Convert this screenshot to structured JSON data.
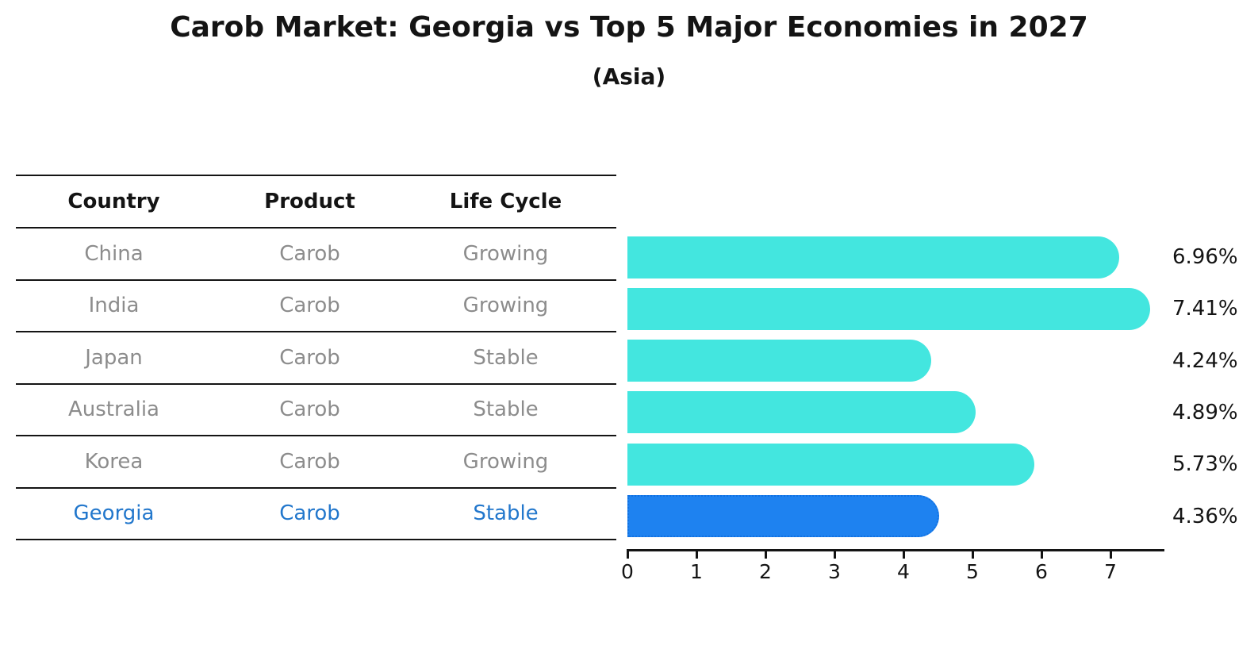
{
  "title": "Carob Market: Georgia vs Top 5 Major Economies in 2027",
  "subtitle": "(Asia)",
  "table": {
    "headers": [
      "Country",
      "Product",
      "Life Cycle"
    ],
    "rows": [
      {
        "country": "China",
        "product": "Carob",
        "life_cycle": "Growing",
        "highlight": false
      },
      {
        "country": "India",
        "product": "Carob",
        "life_cycle": "Growing",
        "highlight": false
      },
      {
        "country": "Japan",
        "product": "Carob",
        "life_cycle": "Stable",
        "highlight": false
      },
      {
        "country": "Australia",
        "product": "Carob",
        "life_cycle": "Stable",
        "highlight": false
      },
      {
        "country": "Korea",
        "product": "Carob",
        "life_cycle": "Growing",
        "highlight": false
      },
      {
        "country": "Georgia",
        "product": "Carob",
        "life_cycle": "Stable",
        "highlight": true
      }
    ]
  },
  "chart_data": {
    "type": "bar",
    "orientation": "horizontal",
    "title": "Carob Market: Georgia vs Top 5 Major Economies in 2027",
    "subtitle": "(Asia)",
    "categories": [
      "China",
      "India",
      "Japan",
      "Australia",
      "Korea",
      "Georgia"
    ],
    "values": [
      6.96,
      7.41,
      4.24,
      4.89,
      5.73,
      4.36
    ],
    "labels": [
      "6.96%",
      "7.41%",
      "4.24%",
      "4.89%",
      "5.73%",
      "4.36%"
    ],
    "highlight_index": 5,
    "xlim": [
      0,
      7.78
    ],
    "xticks": [
      0,
      1,
      2,
      3,
      4,
      5,
      6,
      7
    ],
    "grid": false,
    "legend": null,
    "value_label_suffix": "%"
  },
  "colors": {
    "bar": "#43E6DF",
    "highlight_bar": "#1E82F0",
    "highlight_border": "#1272E2",
    "row_text": "#8C8C8C",
    "highlight_text": "#2277CC",
    "line": "#141414"
  }
}
